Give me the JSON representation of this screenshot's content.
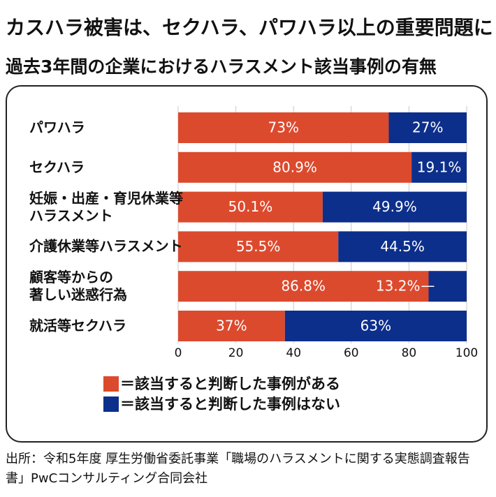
{
  "chart_data": {
    "type": "stacked-bar-horizontal",
    "title": "カスハラ被害は、セクハラ、パワハラ以上の重要問題に",
    "subtitle": "過去3年間の企業におけるハラスメント該当事例の有無",
    "categories": [
      "パワハラ",
      "セクハラ",
      "妊娠・出産・育児休業等\nハラスメント",
      "介護休業等ハラスメント",
      "顧客等からの\n著しい迷惑行為",
      "就活等セクハラ"
    ],
    "series": [
      {
        "name": "＝該当すると判断した事例がある",
        "color": "#dc4a2e",
        "values": [
          73,
          80.9,
          50.1,
          55.5,
          86.8,
          37
        ],
        "value_labels": [
          "73%",
          "80.9%",
          "50.1%",
          "55.5%",
          "86.8%",
          "37%"
        ]
      },
      {
        "name": "＝該当すると判断した事例はない",
        "color": "#0d2f8c",
        "values": [
          27,
          19.1,
          49.9,
          44.5,
          13.2,
          63
        ],
        "value_labels": [
          "27%",
          "19.1%",
          "49.9%",
          "44.5%",
          "13.2%",
          "63%"
        ]
      }
    ],
    "xlim": [
      0,
      100
    ],
    "xticks": [
      0,
      20,
      40,
      60,
      80,
      100
    ],
    "grid": true,
    "source": "出所：令和5年度 厚生労働省委託事業「職場のハラスメントに関する実態調査報告書」PwCコンサルティング合同会社"
  }
}
